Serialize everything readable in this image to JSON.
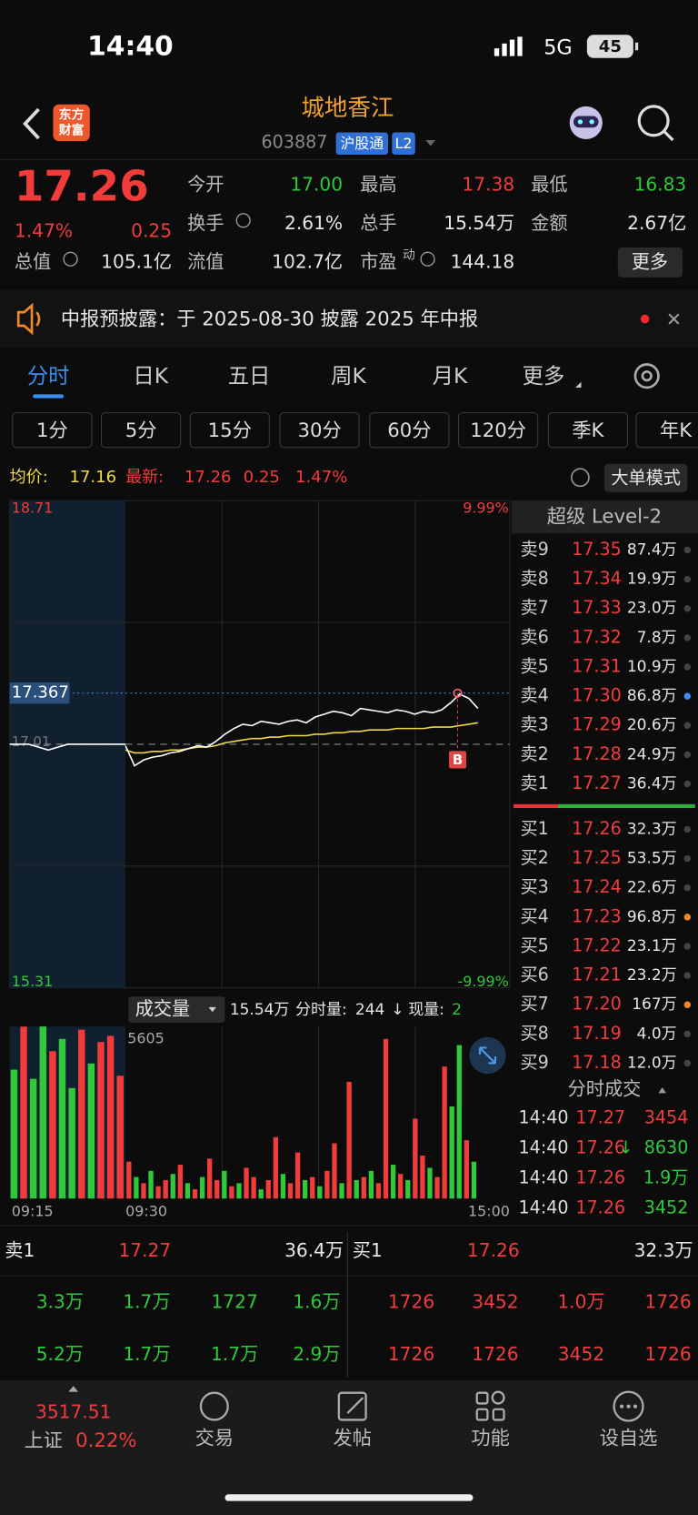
{
  "status": {
    "time": "14:40",
    "network": "5G",
    "battery": "45"
  },
  "header": {
    "logo": [
      "东方",
      "财富"
    ],
    "title": "城地香江",
    "code": "603887",
    "badges": [
      "沪股通",
      "L2"
    ]
  },
  "quote": {
    "price": "17.26",
    "pct": "1.47%",
    "change": "0.25",
    "stats": [
      {
        "label": "今开",
        "value": "17.00",
        "color": "green"
      },
      {
        "label": "最高",
        "value": "17.38",
        "color": "red"
      },
      {
        "label": "最低",
        "value": "16.83",
        "color": "green"
      },
      {
        "label": "换手",
        "value": "2.61%"
      },
      {
        "label": "总手",
        "value": "15.54万"
      },
      {
        "label": "金额",
        "value": "2.67亿"
      },
      {
        "label": "总值",
        "value": "105.1亿"
      },
      {
        "label": "流值",
        "value": "102.7亿"
      },
      {
        "label": "市盈",
        "sup": "动",
        "value": "144.18"
      }
    ],
    "more": "更多"
  },
  "notice": {
    "text": "中报预披露：于 2025-08-30 披露 2025 年中报"
  },
  "tabs": {
    "items": [
      "分时",
      "日K",
      "五日",
      "周K",
      "月K",
      "更多"
    ],
    "active": 0
  },
  "periods": [
    "1分",
    "5分",
    "15分",
    "30分",
    "60分",
    "120分",
    "季K",
    "年K"
  ],
  "info": {
    "avg_label": "均价:",
    "avg": "17.16",
    "latest_label": "最新:",
    "latest": "17.26",
    "change": "0.25",
    "pct": "1.47%",
    "mode": "大单模式"
  },
  "intraday": {
    "ylim": [
      15.31,
      18.71
    ],
    "pct_labels": [
      "9.99%",
      "-9.99%"
    ],
    "prev_close": 17.01,
    "cursor": 17.367,
    "marker": "B",
    "times": [
      "09:15",
      "09:30",
      "15:00"
    ],
    "premarket": [
      17.01,
      17.01,
      16.97,
      17.01,
      17.01,
      17.01,
      17.01
    ],
    "price": [
      17.0,
      16.86,
      16.9,
      16.92,
      16.93,
      16.95,
      16.96,
      16.98,
      17.0,
      16.99,
      17.03,
      17.08,
      17.12,
      17.15,
      17.14,
      17.17,
      17.16,
      17.15,
      17.17,
      17.18,
      17.16,
      17.2,
      17.22,
      17.24,
      17.23,
      17.21,
      17.26,
      17.25,
      17.24,
      17.23,
      17.25,
      17.24,
      17.22,
      17.24,
      17.23,
      17.25,
      17.3,
      17.36,
      17.33,
      17.26
    ],
    "avg": [
      16.97,
      16.95,
      16.95,
      16.96,
      16.96,
      16.97,
      16.97,
      16.98,
      16.99,
      16.99,
      17.0,
      17.02,
      17.03,
      17.04,
      17.05,
      17.05,
      17.06,
      17.06,
      17.07,
      17.07,
      17.07,
      17.08,
      17.08,
      17.09,
      17.09,
      17.1,
      17.1,
      17.11,
      17.11,
      17.11,
      17.12,
      17.12,
      17.12,
      17.12,
      17.13,
      17.13,
      17.13,
      17.14,
      17.15,
      17.16
    ]
  },
  "volume": {
    "label": "成交量",
    "total": "15.54万",
    "seg_label": "分时量:",
    "seg": "244",
    "arrow": "↓",
    "cur_label": "现量:",
    "cur": "2",
    "ylim": [
      0,
      5605
    ],
    "premarket": [
      4200,
      5600,
      3900,
      5605,
      4800,
      5200,
      3600,
      5500,
      4400,
      5100,
      5300,
      4000
    ],
    "premarket_dir": [
      "down",
      "up",
      "down",
      "down",
      "up",
      "down",
      "down",
      "up",
      "down",
      "up",
      "up",
      "up"
    ],
    "values": [
      1200,
      700,
      500,
      900,
      400,
      600,
      800,
      1100,
      500,
      300,
      700,
      1300,
      600,
      900,
      400,
      500,
      1000,
      700,
      300,
      600,
      2000,
      800,
      500,
      1500,
      600,
      700,
      400,
      900,
      1800,
      500,
      3800,
      600,
      700,
      900,
      500,
      5200,
      1100,
      800,
      600,
      2600,
      1400,
      1000,
      700,
      4300,
      3000,
      5000,
      1900,
      1200
    ],
    "dir": [
      "up",
      "down",
      "up",
      "down",
      "up",
      "up",
      "down",
      "up",
      "down",
      "up",
      "down",
      "up",
      "up",
      "down",
      "up",
      "down",
      "up",
      "up",
      "down",
      "up",
      "up",
      "down",
      "up",
      "up",
      "down",
      "up",
      "down",
      "up",
      "up",
      "down",
      "up",
      "down",
      "up",
      "down",
      "up",
      "up",
      "down",
      "up",
      "down",
      "up",
      "up",
      "down",
      "up",
      "up",
      "down",
      "down",
      "up",
      "down"
    ]
  },
  "order_book": {
    "title": "超级 Level-2",
    "sell": [
      {
        "label": "卖9",
        "price": "17.35",
        "volume": "87.4万",
        "dot": "gray"
      },
      {
        "label": "卖8",
        "price": "17.34",
        "volume": "19.9万",
        "dot": "gray"
      },
      {
        "label": "卖7",
        "price": "17.33",
        "volume": "23.0万",
        "dot": "gray"
      },
      {
        "label": "卖6",
        "price": "17.32",
        "volume": "7.8万",
        "dot": "gray"
      },
      {
        "label": "卖5",
        "price": "17.31",
        "volume": "10.9万",
        "dot": "gray"
      },
      {
        "label": "卖4",
        "price": "17.30",
        "volume": "86.8万",
        "dot": "blue"
      },
      {
        "label": "卖3",
        "price": "17.29",
        "volume": "20.6万",
        "dot": "gray"
      },
      {
        "label": "卖2",
        "price": "17.28",
        "volume": "24.9万",
        "dot": "gray"
      },
      {
        "label": "卖1",
        "price": "17.27",
        "volume": "36.4万",
        "dot": "gray"
      }
    ],
    "buy": [
      {
        "label": "买1",
        "price": "17.26",
        "volume": "32.3万",
        "dot": "gray"
      },
      {
        "label": "买2",
        "price": "17.25",
        "volume": "53.5万",
        "dot": "gray"
      },
      {
        "label": "买3",
        "price": "17.24",
        "volume": "22.6万",
        "dot": "gray"
      },
      {
        "label": "买4",
        "price": "17.23",
        "volume": "96.8万",
        "dot": "orange"
      },
      {
        "label": "买5",
        "price": "17.22",
        "volume": "23.1万",
        "dot": "gray"
      },
      {
        "label": "买6",
        "price": "17.21",
        "volume": "23.2万",
        "dot": "gray"
      },
      {
        "label": "买7",
        "price": "17.20",
        "volume": "167万",
        "dot": "orange"
      },
      {
        "label": "买8",
        "price": "17.19",
        "volume": "4.0万",
        "dot": "gray"
      },
      {
        "label": "买9",
        "price": "17.18",
        "volume": "12.0万",
        "dot": "gray"
      }
    ]
  },
  "trades": {
    "title": "分时成交",
    "rows": [
      {
        "time": "14:40",
        "price": "17.27",
        "volume": "3454",
        "dir": "red"
      },
      {
        "time": "14:40",
        "price": "17.26",
        "arrow": "↓",
        "volume": "8630",
        "dir": "green"
      },
      {
        "time": "14:40",
        "price": "17.26",
        "volume": "1.9万",
        "dir": "green"
      },
      {
        "time": "14:40",
        "price": "17.26",
        "volume": "3452",
        "dir": "green"
      }
    ]
  },
  "summary": {
    "sell": {
      "label": "卖1",
      "price": "17.27",
      "volume": "36.4万"
    },
    "buy": {
      "label": "买1",
      "price": "17.26",
      "volume": "32.3万"
    },
    "sell_rows": [
      [
        "3.3万",
        "1.7万",
        "1727",
        "1.6万"
      ],
      [
        "5.2万",
        "1.7万",
        "1.7万",
        "2.9万"
      ]
    ],
    "buy_rows": [
      [
        "1726",
        "3452",
        "1.0万",
        "1726"
      ],
      [
        "1726",
        "1726",
        "3452",
        "1726"
      ]
    ]
  },
  "nav": {
    "index": {
      "value": "3517.51",
      "name": "上证",
      "pct": "0.22%"
    },
    "items": [
      "交易",
      "发帖",
      "功能",
      "设自选"
    ]
  }
}
